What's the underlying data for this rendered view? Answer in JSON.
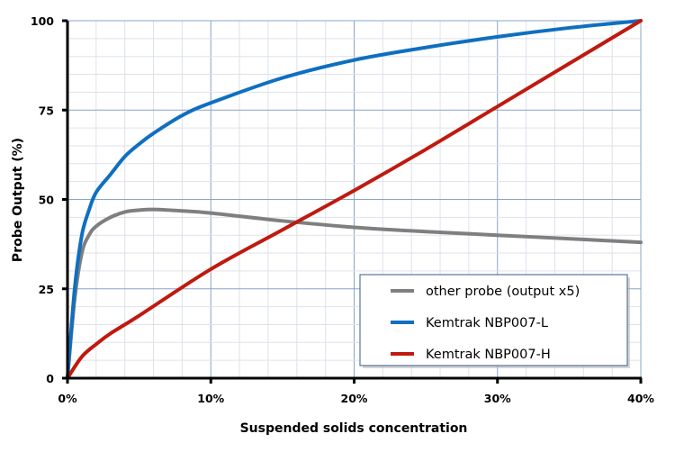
{
  "chart_data": {
    "type": "line",
    "title": "",
    "xlabel": "Suspended solids concentration",
    "ylabel": "Probe Output  (%)",
    "xlim": [
      0,
      40
    ],
    "ylim": [
      0,
      100
    ],
    "x_ticks": [
      0,
      10,
      20,
      30,
      40
    ],
    "x_tick_labels": [
      "0%",
      "10%",
      "20%",
      "30%",
      "40%"
    ],
    "y_ticks": [
      0,
      25,
      50,
      75,
      100
    ],
    "y_tick_labels": [
      "0",
      "25",
      "50",
      "75",
      "100"
    ],
    "grid": "on (major and minor)",
    "legend_position": "bottom-right",
    "series": [
      {
        "name": "other probe (output x5)",
        "color": "#7f7f7f",
        "x": [
          0,
          0.5,
          1,
          1.5,
          2,
          3,
          4,
          5,
          6,
          8,
          10,
          15,
          20,
          25,
          30,
          35,
          40
        ],
        "y": [
          0,
          22,
          35,
          40,
          42.5,
          45,
          46.5,
          47,
          47.2,
          46.8,
          46.2,
          44,
          42.2,
          41,
          40,
          39,
          38
        ]
      },
      {
        "name": "Kemtrak NBP007-L",
        "color": "#0f6fc0",
        "x": [
          0,
          0.5,
          1,
          1.5,
          2,
          3,
          4,
          5,
          6,
          8,
          10,
          15,
          20,
          25,
          30,
          35,
          40
        ],
        "y": [
          0,
          25,
          40,
          47,
          52,
          57,
          62,
          65.5,
          68.5,
          73.5,
          77,
          84,
          89,
          92.5,
          95.5,
          98,
          100
        ]
      },
      {
        "name": "Kemtrak NBP007-H",
        "color": "#c0190f",
        "x": [
          0,
          1,
          2,
          3,
          5,
          10,
          15,
          20,
          25,
          30,
          35,
          40
        ],
        "y": [
          0,
          6,
          9.5,
          12.5,
          17.5,
          30.5,
          41.5,
          52.5,
          64,
          76,
          88,
          100
        ]
      }
    ]
  }
}
